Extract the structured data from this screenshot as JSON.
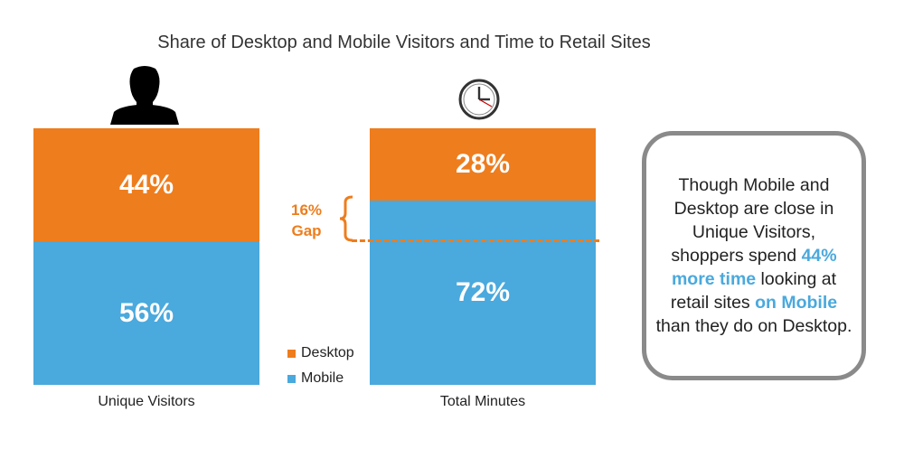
{
  "chart_data": {
    "type": "bar",
    "stacked": true,
    "title": "Share of Desktop and Mobile Visitors and Time to Retail Sites",
    "categories": [
      "Unique Visitors",
      "Total Minutes"
    ],
    "series": [
      {
        "name": "Desktop",
        "values": [
          44,
          28
        ],
        "labels": [
          "44%",
          "28%"
        ],
        "color": "#ee7d1d"
      },
      {
        "name": "Mobile",
        "values": [
          56,
          72
        ],
        "labels": [
          "56%",
          "72%"
        ],
        "color": "#4aa9dd"
      }
    ],
    "legend": "center, between the bars",
    "ylim": [
      0,
      100
    ],
    "annotation": {
      "label_line1": "16%",
      "label_line2": "Gap",
      "value": 16
    }
  },
  "icons": {
    "visitors": "person-silhouette-icon",
    "minutes": "clock-icon"
  },
  "callout": {
    "t1": "Though Mobile and Desktop are close in Unique Visitors, shoppers spend ",
    "h1": "44% more time",
    "t2": " looking at retail sites ",
    "h2": "on Mobile",
    "t3": " than they do on Desktop."
  }
}
